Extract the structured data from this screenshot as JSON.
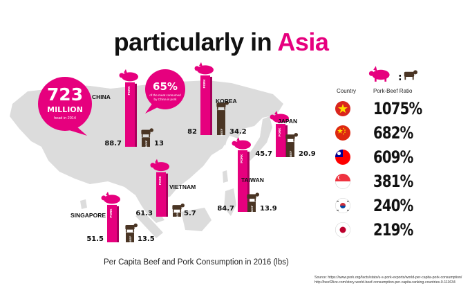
{
  "title": {
    "prefix": "particularly in ",
    "accent": "Asia"
  },
  "colors": {
    "pork": "#e6007e",
    "beef": "#4a3524",
    "map": "#dcdcdc",
    "text": "#111111"
  },
  "chart_data": {
    "type": "bar",
    "title": "Per Capita Beef and Pork Consumption in 2016 (lbs)",
    "categories": [
      "CHINA",
      "KOREA",
      "JAPAN",
      "VIETNAM",
      "TAIWAN",
      "SINGAPORE"
    ],
    "series": [
      {
        "name": "PORK",
        "values": [
          88.7,
          82,
          45.7,
          61.3,
          84.7,
          51.5
        ]
      },
      {
        "name": "BEEF",
        "values": [
          13,
          34.2,
          20.9,
          5.7,
          13.9,
          13.5
        ]
      }
    ]
  },
  "callouts": {
    "bubble_number": "723",
    "bubble_unit": "MILLION",
    "bubble_caption": "head in 2014",
    "share_pct": "65%",
    "share_caption_1": "of the meat consumed",
    "share_caption_2": "by China is pork"
  },
  "ratio_panel": {
    "country_header": "Country",
    "ratio_header": "Pork-Beef Ratio",
    "rows": [
      {
        "flag": "vietnam-flag",
        "value": "1075%"
      },
      {
        "flag": "china-flag",
        "value": "682%"
      },
      {
        "flag": "taiwan-flag",
        "value": "609%"
      },
      {
        "flag": "singapore-flag",
        "value": "381%"
      },
      {
        "flag": "korea-flag",
        "value": "240%"
      },
      {
        "flag": "japan-flag",
        "value": "219%"
      }
    ]
  },
  "source_line_1": "Source: https://www.pork.org/facts/stats/u-s-pork-exports/world-per-capita-pork-consumption/",
  "source_line_2": "http://beef2live.com/story-world-beef-consumption-per-capita-ranking-countries-0-111634"
}
